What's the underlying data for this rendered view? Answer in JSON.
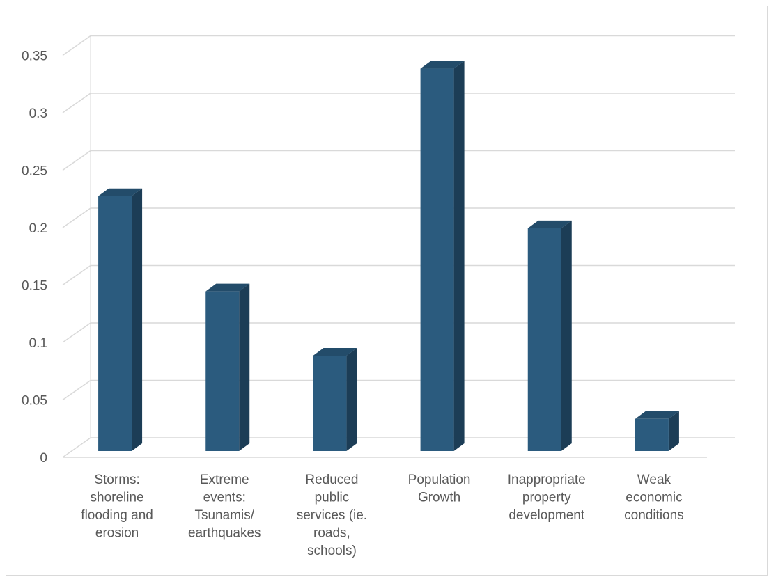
{
  "chart_data": {
    "type": "bar",
    "title": "",
    "xlabel": "",
    "ylabel": "",
    "ylim": [
      0,
      0.35
    ],
    "y_ticks": [
      {
        "value": 0,
        "label": "0"
      },
      {
        "value": 0.05,
        "label": "0.05"
      },
      {
        "value": 0.1,
        "label": "0.1"
      },
      {
        "value": 0.15,
        "label": "0.15"
      },
      {
        "value": 0.2,
        "label": "0.2"
      },
      {
        "value": 0.25,
        "label": "0.25"
      },
      {
        "value": 0.3,
        "label": "0.3"
      },
      {
        "value": 0.35,
        "label": "0.35"
      }
    ],
    "categories": [
      [
        "Storms:",
        "shoreline",
        "flooding and",
        "erosion"
      ],
      [
        "Extreme",
        "events:",
        "Tsunamis/",
        "earthquakes"
      ],
      [
        "Reduced",
        "public",
        "services  (ie.",
        "roads,",
        "schools)"
      ],
      [
        "Population",
        "Growth"
      ],
      [
        "Inappropriate",
        "property",
        "development"
      ],
      [
        "Weak",
        "economic",
        "conditions"
      ]
    ],
    "values": [
      0.222,
      0.139,
      0.083,
      0.333,
      0.194,
      0.028
    ],
    "grid": true,
    "legend": "none",
    "style": "3d-column",
    "colors": {
      "front": "#2b5b7e",
      "side": "#1c3d56",
      "top": "#234c6a",
      "grid": "#d9d9d9"
    }
  }
}
